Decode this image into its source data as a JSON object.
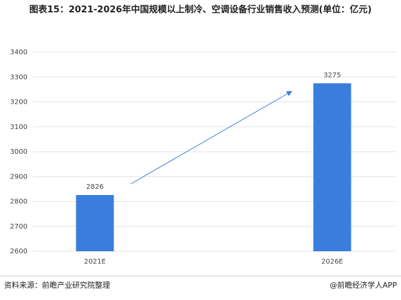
{
  "chart_data": {
    "type": "bar",
    "title": "图表15：2021-2026年中国规模以上制冷、空调设备行业销售收入预测(单位：亿元)",
    "categories": [
      "2021E",
      "2026E"
    ],
    "values": [
      2826,
      3275
    ],
    "color": "#3b7ddd",
    "ylim": [
      2600,
      3400
    ],
    "yticks": [
      2600,
      2700,
      2800,
      2900,
      3000,
      3100,
      3200,
      3300,
      3400
    ],
    "grid": true,
    "source": "资料来源：前瞻产业研究院整理",
    "credit": "@前瞻经济学人APP"
  }
}
